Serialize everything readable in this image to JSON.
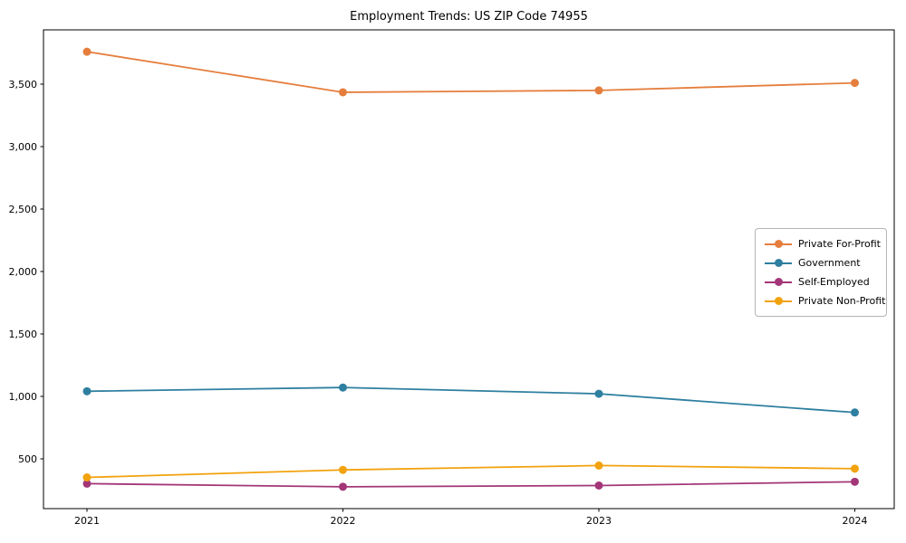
{
  "chart_data": {
    "type": "line",
    "title": "Employment Trends: US ZIP Code 74955",
    "x": [
      2021,
      2022,
      2023,
      2024
    ],
    "xtick_labels": [
      "2021",
      "2022",
      "2023",
      "2024"
    ],
    "series": [
      {
        "name": "Private For-Profit",
        "color": "#E57E3D",
        "values": [
          3760,
          3435,
          3450,
          3510
        ]
      },
      {
        "name": "Government",
        "color": "#2E7FA0",
        "values": [
          1040,
          1070,
          1020,
          870
        ]
      },
      {
        "name": "Self-Employed",
        "color": "#A33678",
        "values": [
          300,
          275,
          285,
          315
        ]
      },
      {
        "name": "Private Non-Profit",
        "color": "#F2A20D",
        "values": [
          350,
          410,
          445,
          420
        ]
      }
    ],
    "ylim": [
      100,
      3935
    ],
    "yticks": [
      500,
      1000,
      1500,
      2000,
      2500,
      3000,
      3500
    ],
    "ytick_labels": [
      "500",
      "1,000",
      "1,500",
      "2,000",
      "2,500",
      "3,000",
      "3,500"
    ],
    "legend_position": "center right",
    "grid": false,
    "axis_color": "#000000",
    "background": "#ffffff",
    "marker": "circle",
    "marker_size": 9,
    "line_width": 1.8
  }
}
